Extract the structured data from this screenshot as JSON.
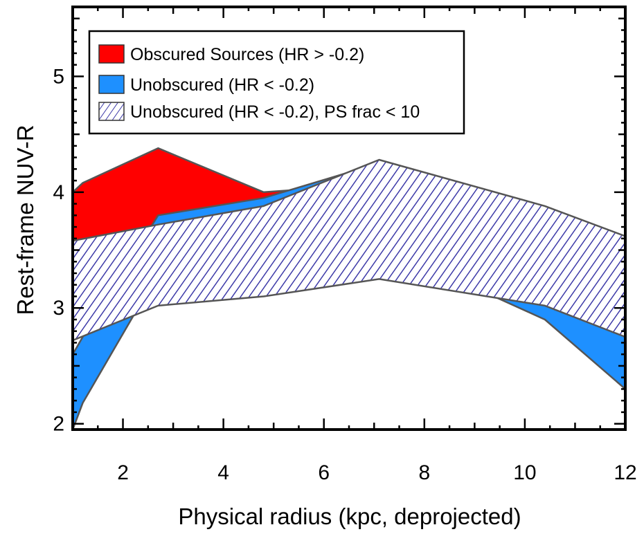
{
  "chart_data": {
    "type": "area",
    "title": "",
    "xlabel": "Physical radius (kpc, deprojected)",
    "ylabel": "Rest-frame NUV-R",
    "xlim": [
      1,
      12
    ],
    "ylim": [
      1.95,
      5.6
    ],
    "xticks": [
      2,
      4,
      6,
      8,
      10,
      12
    ],
    "yticks": [
      2,
      3,
      4,
      5
    ],
    "grid": false,
    "legend_position": "top-left",
    "series": [
      {
        "name": "Obscured Sources (HR > -0.2)",
        "style": "solid",
        "color": "#ff0000",
        "x": [
          1,
          1.2,
          2.7,
          4.8,
          7.1,
          12
        ],
        "upper": [
          4.0,
          4.08,
          4.38,
          4.0,
          4.07,
          3.6
        ],
        "lower": [
          3.35,
          3.5,
          3.72,
          3.45,
          3.55,
          3.08
        ]
      },
      {
        "name": "Unobscured (HR < -0.2)",
        "style": "solid",
        "color": "#1e90ff",
        "x": [
          1,
          1.2,
          2.7,
          4.8,
          7.1,
          10.4,
          12
        ],
        "upper": [
          2.6,
          2.75,
          3.8,
          3.95,
          4.25,
          3.1,
          2.75
        ],
        "lower": [
          1.95,
          2.18,
          3.3,
          3.3,
          3.55,
          2.9,
          2.3
        ]
      },
      {
        "name": "Unobscured (HR < -0.2), PS frac < 10",
        "style": "hatched",
        "color": "#3d3aa8",
        "x": [
          1,
          2.7,
          4.8,
          7.1,
          10.4,
          12
        ],
        "upper": [
          3.58,
          3.72,
          3.88,
          4.28,
          3.88,
          3.62
        ],
        "lower": [
          2.72,
          3.02,
          3.1,
          3.25,
          3.02,
          2.75
        ]
      }
    ]
  }
}
